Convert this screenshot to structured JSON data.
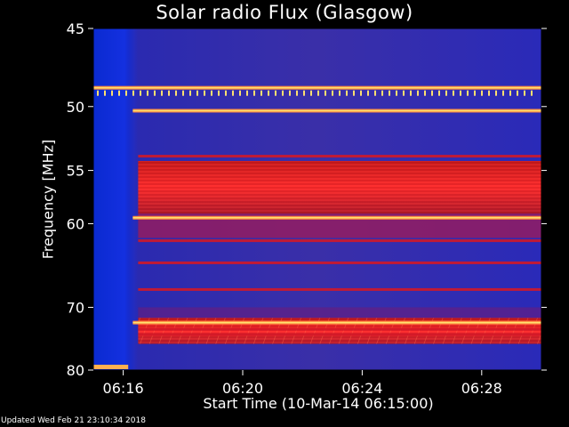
{
  "chart_data": {
    "type": "heatmap",
    "title": "Solar radio Flux (Glasgow)",
    "ylabel": "Frequency [MHz]",
    "xlabel": "Start Time (10-Mar-14 06:15:00)",
    "y_scale": "reciprocal",
    "y_range_mhz": [
      45,
      80
    ],
    "y_ticks": [
      {
        "value": 45,
        "label": "45"
      },
      {
        "value": 50,
        "label": "50"
      },
      {
        "value": 55,
        "label": "55"
      },
      {
        "value": 60,
        "label": "60"
      },
      {
        "value": 70,
        "label": "70"
      },
      {
        "value": 80,
        "label": "80"
      }
    ],
    "x_range": [
      "06:15:00",
      "06:30:00"
    ],
    "x_ticks": [
      {
        "time": "06:16:00",
        "label": "06:16"
      },
      {
        "time": "06:20:00",
        "label": "06:20"
      },
      {
        "time": "06:24:00",
        "label": "06:24"
      },
      {
        "time": "06:28:00",
        "label": "06:28"
      }
    ],
    "colormap": [
      "#0a0a5a",
      "#1c3cff",
      "#6a2aa8",
      "#d01818",
      "#ff3030",
      "#ffd060"
    ],
    "bright_bands_mhz": [
      48.7,
      50.3,
      59.4,
      72.2
    ],
    "interference_bands_mhz": [
      53.8,
      61.8,
      64.3,
      67.6,
      73.2,
      74.0
    ],
    "strong_emission_mhz": [
      54.2,
      59.0
    ],
    "strong_emission_2_mhz": [
      71.5,
      75.5
    ],
    "onset_time": "06:16:30",
    "low_band_edge": {
      "time_end": "06:16:10",
      "mhz": 80
    }
  },
  "footer": {
    "updated": "Updated Wed Feb 21 23:10:34 2018"
  }
}
